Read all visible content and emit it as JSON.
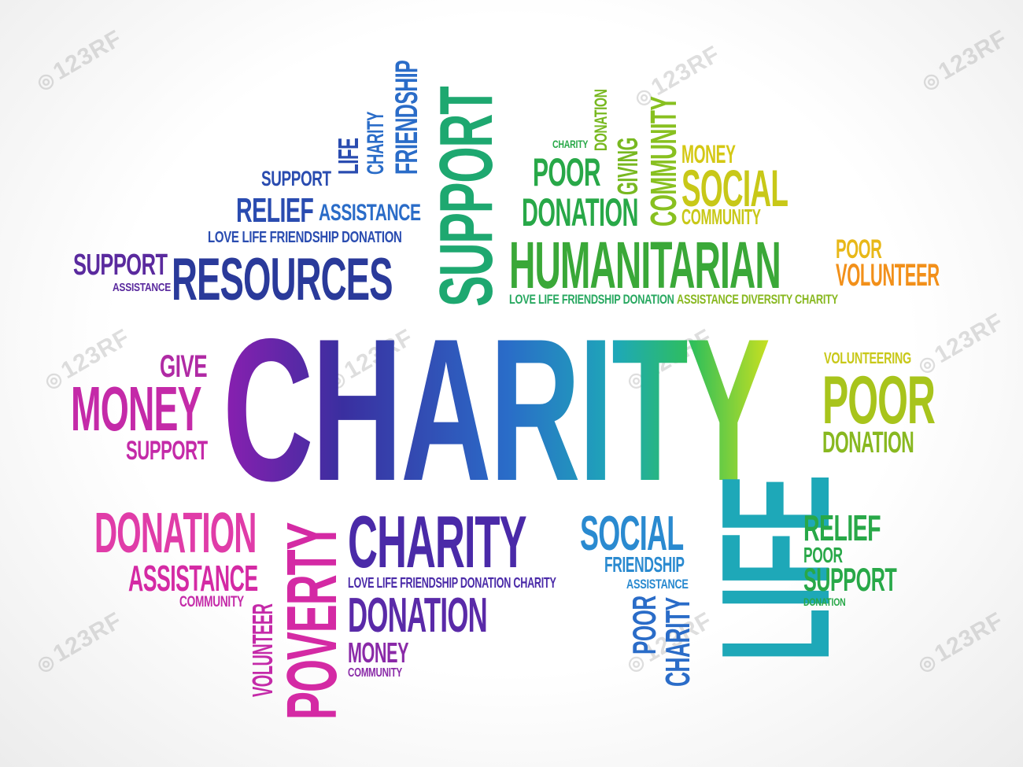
{
  "hero": "CHARITY",
  "watermark": "123RF",
  "words": {
    "support_lime_vert": "SUPPORT",
    "friendship_vert": "FRIENDSHIP",
    "charity_vert_small": "CHARITY",
    "life_vert_small": "LIFE",
    "support_small": "SUPPORT",
    "relief": "RELIEF",
    "assistance_mid": "ASSISTANCE",
    "love_life_top": "LOVE LIFE FRIENDSHIP DONATION",
    "support_purple": "SUPPORT",
    "assistance_tiny": "ASSISTANCE",
    "resources": "RESOURCES",
    "charity_tiny": "CHARITY",
    "donation_tiny_vert": "DONATION",
    "poor_green": "POOR",
    "giving_vert": "GIVING",
    "donation_green": "DONATION",
    "community_vert": "COMMUNITY",
    "money_yellow": "MONEY",
    "social_yellow": "SOCIAL",
    "community_yellow": "COMMUNITY",
    "humanitarian": "HUMANITARIAN",
    "poor_orange": "POOR",
    "volunteer_orange": "VOLUNTEER",
    "love_life_mid": "LOVE LIFE FRIENDSHIP DONATION",
    "assistance_diversity": "ASSISTANCE DIVERSITY CHARITY",
    "give": "GIVE",
    "money_pink": "MONEY",
    "support_pink": "SUPPORT",
    "volunteering": "VOLUNTEERING",
    "poor_lime": "POOR",
    "donation_lime": "DONATION",
    "donation_pink": "DONATION",
    "assistance_pink": "ASSISTANCE",
    "community_pink": "COMMUNITY",
    "volunteer_vert": "VOLUNTEER",
    "poverty_vert": "POVERTY",
    "charity_purple": "CHARITY",
    "love_life_bottom": "LOVE LIFE FRIENDSHIP DONATION CHARITY",
    "donation_purple": "DONATION",
    "money_purple": "MONEY",
    "community_purple": "COMMUNITY",
    "social_blue": "SOCIAL",
    "friendship_blue": "FRIENDSHIP",
    "assistance_blue": "ASSISTANCE",
    "poor_vert_blue": "POOR",
    "charity_vert_blue": "CHARITY",
    "life_big_vert": "LIFE",
    "relief_green": "RELIEF",
    "poor_green_small": "POOR",
    "support_green": "SUPPORT",
    "donation_green_tiny": "DONATION"
  },
  "colors": {
    "purple": "#7a2a9e",
    "indigo": "#2a3a9a",
    "blue": "#2a6cc8",
    "teal": "#1ea8b8",
    "green": "#28a848",
    "lime": "#9ac81e",
    "yellow": "#d4c814",
    "orange": "#f2a016",
    "pink": "#d42aa4",
    "magenta": "#e03ca8"
  }
}
